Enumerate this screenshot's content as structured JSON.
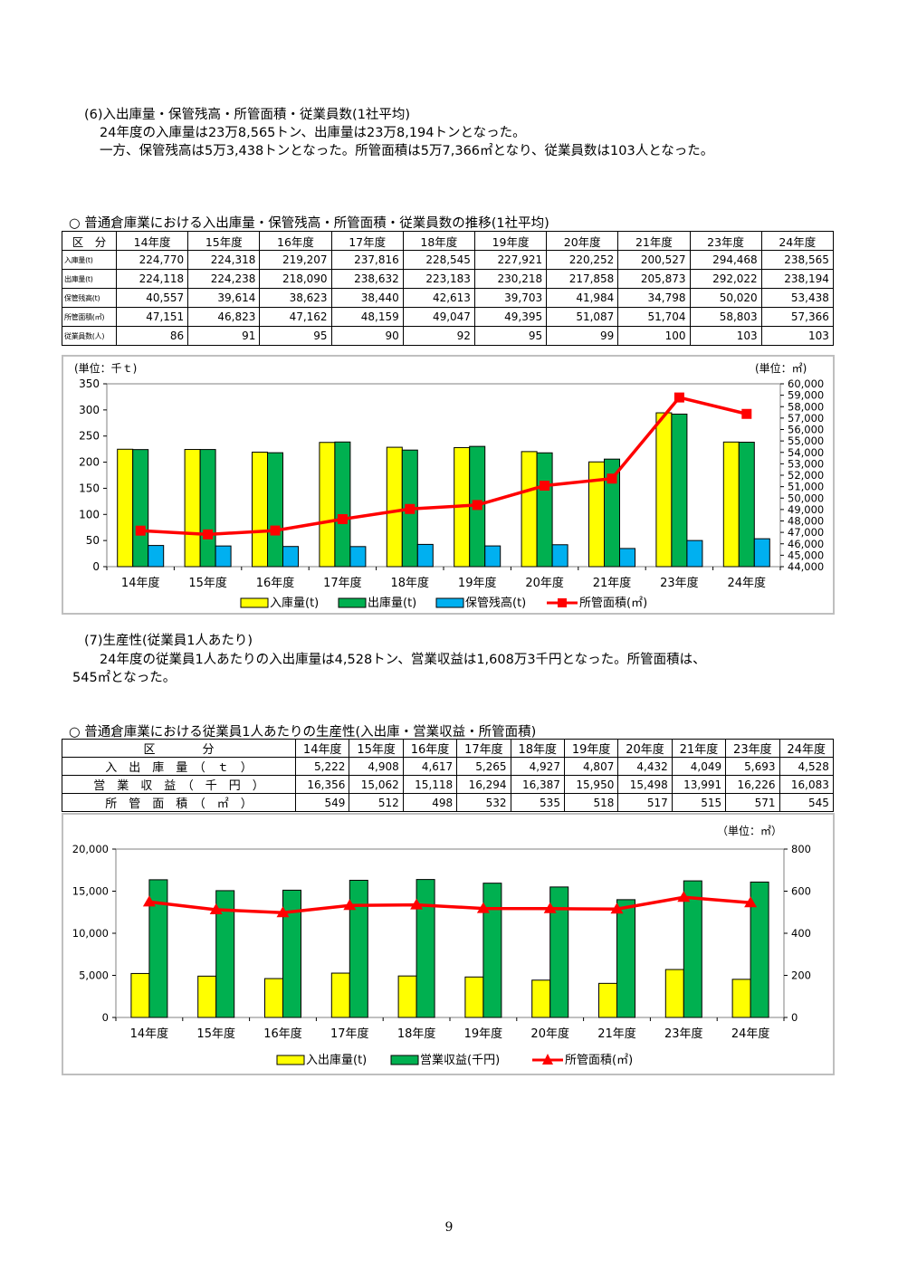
{
  "section6": {
    "heading": "(6)入出庫量・保管残高・所管面積・従業員数(1社平均)",
    "line1": "24年度の入庫量は23万8,565トン、出庫量は23万8,194トンとなった。",
    "line2": "一方、保管残高は5万3,438トンとなった。所管面積は5万7,366㎡となり、従業員数は103人となった。"
  },
  "table1": {
    "title": "○ 普通倉庫業における入出庫量・保管残高・所管面積・従業員数の推移(1社平均)",
    "corner": "区　分",
    "years": [
      "14年度",
      "15年度",
      "16年度",
      "17年度",
      "18年度",
      "19年度",
      "20年度",
      "21年度",
      "23年度",
      "24年度"
    ],
    "rows": [
      {
        "label": "入庫量(t)",
        "values": [
          "224,770",
          "224,318",
          "219,207",
          "237,816",
          "228,545",
          "227,921",
          "220,252",
          "200,527",
          "294,468",
          "238,565"
        ]
      },
      {
        "label": "出庫量(t)",
        "values": [
          "224,118",
          "224,238",
          "218,090",
          "238,632",
          "223,183",
          "230,218",
          "217,858",
          "205,873",
          "292,022",
          "238,194"
        ]
      },
      {
        "label": "保管残高(t)",
        "values": [
          "40,557",
          "39,614",
          "38,623",
          "38,440",
          "42,613",
          "39,703",
          "41,984",
          "34,798",
          "50,020",
          "53,438"
        ]
      },
      {
        "label": "所管面積(㎡)",
        "values": [
          "47,151",
          "46,823",
          "47,162",
          "48,159",
          "49,047",
          "49,395",
          "51,087",
          "51,704",
          "58,803",
          "57,366"
        ]
      },
      {
        "label": "従業員数(人)",
        "values": [
          "86",
          "91",
          "95",
          "90",
          "92",
          "95",
          "99",
          "100",
          "103",
          "103"
        ]
      }
    ]
  },
  "chart1_data": {
    "type": "bar",
    "categories": [
      "14年度",
      "15年度",
      "16年度",
      "17年度",
      "18年度",
      "19年度",
      "20年度",
      "21年度",
      "23年度",
      "24年度"
    ],
    "left_unit": "(単位：千ｔ)",
    "right_unit": "(単位：㎡)",
    "ylim": [
      0,
      350
    ],
    "yticks": [
      "0",
      "50",
      "100",
      "150",
      "200",
      "250",
      "300",
      "350"
    ],
    "y2lim": [
      44000,
      60000
    ],
    "y2ticks": [
      "44,000",
      "45,000",
      "46,000",
      "47,000",
      "48,000",
      "49,000",
      "50,000",
      "51,000",
      "52,000",
      "53,000",
      "54,000",
      "55,000",
      "56,000",
      "57,000",
      "58,000",
      "59,000",
      "60,000"
    ],
    "series": [
      {
        "name": "入庫量(t)",
        "color": "#ffff00",
        "values": [
          224.77,
          224.318,
          219.207,
          237.816,
          228.545,
          227.921,
          220.252,
          200.527,
          294.468,
          238.565
        ]
      },
      {
        "name": "出庫量(t)",
        "color": "#00b050",
        "values": [
          224.118,
          224.238,
          218.09,
          238.632,
          223.183,
          230.218,
          217.858,
          205.873,
          292.022,
          238.194
        ]
      },
      {
        "name": "保管残高(t)",
        "color": "#00b0f0",
        "values": [
          40.557,
          39.614,
          38.623,
          38.44,
          42.613,
          39.703,
          41.984,
          34.798,
          50.02,
          53.438
        ]
      }
    ],
    "line": {
      "name": "所管面積(㎡)",
      "color": "#ff0000",
      "values": [
        47151,
        46823,
        47162,
        48159,
        49047,
        49395,
        51087,
        51704,
        58803,
        57366
      ]
    },
    "grid": false,
    "legend": "bottom"
  },
  "section7": {
    "heading": "(7)生産性(従業員1人あたり)",
    "line1": "24年度の従業員1人あたりの入出庫量は4,528トン、営業収益は1,608万3千円となった。所管面積は、",
    "line2": "545㎡となった。"
  },
  "table2": {
    "title": "○ 普通倉庫業における従業員1人あたりの生産性(入出庫・営業収益・所管面積)",
    "corner": "区　　　　分",
    "years": [
      "14年度",
      "15年度",
      "16年度",
      "17年度",
      "18年度",
      "19年度",
      "20年度",
      "21年度",
      "23年度",
      "24年度"
    ],
    "rows": [
      {
        "label": "入　出　庫　量　（　ｔ　）",
        "values": [
          "5,222",
          "4,908",
          "4,617",
          "5,265",
          "4,927",
          "4,807",
          "4,432",
          "4,049",
          "5,693",
          "4,528"
        ]
      },
      {
        "label": "営　業　収　益　（　千　円　）",
        "values": [
          "16,356",
          "15,062",
          "15,118",
          "16,294",
          "16,387",
          "15,950",
          "15,498",
          "13,991",
          "16,226",
          "16,083"
        ]
      },
      {
        "label": "所　管　面　積　（　㎡　）",
        "values": [
          "549",
          "512",
          "498",
          "532",
          "535",
          "518",
          "517",
          "515",
          "571",
          "545"
        ]
      }
    ]
  },
  "chart2_data": {
    "type": "bar",
    "categories": [
      "14年度",
      "15年度",
      "16年度",
      "17年度",
      "18年度",
      "19年度",
      "20年度",
      "21年度",
      "23年度",
      "24年度"
    ],
    "right_unit": "（単位：㎡）",
    "ylim": [
      0,
      20000
    ],
    "yticks": [
      "0",
      "5,000",
      "10,000",
      "15,000",
      "20,000"
    ],
    "y2lim": [
      0,
      800
    ],
    "y2ticks": [
      "0",
      "200",
      "400",
      "600",
      "800"
    ],
    "series": [
      {
        "name": "入出庫量(t)",
        "color": "#ffff00",
        "values": [
          5222,
          4908,
          4617,
          5265,
          4927,
          4807,
          4432,
          4049,
          5693,
          4528
        ]
      },
      {
        "name": "営業収益(千円)",
        "color": "#00b050",
        "values": [
          16356,
          15062,
          15118,
          16294,
          16387,
          15950,
          15498,
          13991,
          16226,
          16083
        ]
      }
    ],
    "line": {
      "name": "所管面積(㎡)",
      "color": "#ff0000",
      "values": [
        549,
        512,
        498,
        532,
        535,
        518,
        517,
        515,
        571,
        545
      ]
    },
    "grid": false,
    "legend": "bottom"
  },
  "page_number": "9"
}
